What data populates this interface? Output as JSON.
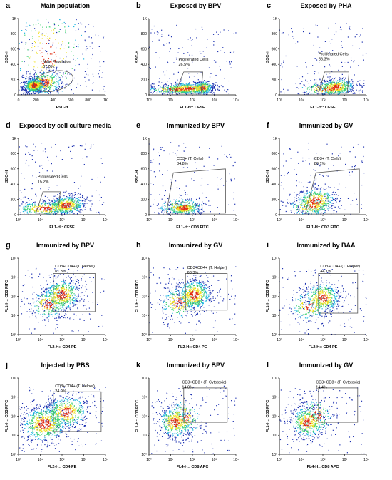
{
  "panels": [
    {
      "letter": "a",
      "title": "Main population",
      "xlabel": "FSC-H",
      "ylabel": "SSC-H",
      "xscale": "lin",
      "yscale": "lin",
      "xticks": [
        "0",
        "200",
        "400",
        "600",
        "800",
        "1K"
      ],
      "yticks": [
        "0",
        "200",
        "400",
        "600",
        "800",
        "1K"
      ],
      "gate_type": "ellipse",
      "gate_name": "Main Population",
      "gate_pct": "87.0%"
    },
    {
      "letter": "b",
      "title": "Exposed by BPV",
      "xlabel": "FL1-H:: CFSE",
      "ylabel": "SSC-H",
      "xscale": "log",
      "yscale": "lin",
      "xticks": [
        "10⁰",
        "10¹",
        "10²",
        "10³",
        "10⁴"
      ],
      "yticks": [
        "0",
        "200",
        "400",
        "600",
        "800",
        "1K"
      ],
      "gate_type": "poly",
      "gate_name": "Proliferated Cells",
      "gate_pct": "26.5%"
    },
    {
      "letter": "c",
      "title": "Exposed by PHA",
      "xlabel": "FL1-H:: CFSE",
      "ylabel": "SSC-H",
      "xscale": "log",
      "yscale": "lin",
      "xticks": [
        "10⁰",
        "10¹",
        "10²",
        "10³",
        "10⁴"
      ],
      "yticks": [
        "0",
        "200",
        "400",
        "600",
        "800",
        "1K"
      ],
      "gate_type": "poly",
      "gate_name": "Proliferated Cells",
      "gate_pct": "56.3%"
    },
    {
      "letter": "d",
      "title": "Exposed by cell culture media",
      "xlabel": "FL1-H:: CFSE",
      "ylabel": "SSC-H",
      "xscale": "log",
      "yscale": "lin",
      "xticks": [
        "10⁰",
        "10¹",
        "10²",
        "10³",
        "10⁴"
      ],
      "yticks": [
        "0",
        "200",
        "400",
        "600",
        "800",
        "1K"
      ],
      "gate_type": "poly",
      "gate_name": "Proliferated Cells",
      "gate_pct": "15.2%"
    },
    {
      "letter": "e",
      "title": "Immunized by BPV",
      "xlabel": "FL1-H:: CD3 FITC",
      "ylabel": "SSC-H",
      "xscale": "log",
      "yscale": "lin",
      "xticks": [
        "10⁰",
        "10¹",
        "10²",
        "10³",
        "10⁴"
      ],
      "yticks": [
        "0",
        "200",
        "400",
        "600",
        "800",
        "1K"
      ],
      "gate_type": "trap",
      "gate_name": "CD3+ (T. Cells)",
      "gate_pct": "84.8%"
    },
    {
      "letter": "f",
      "title": "Immunized by GV",
      "xlabel": "FL1-H:: CD3 FITC",
      "ylabel": "SSC-H",
      "xscale": "log",
      "yscale": "lin",
      "xticks": [
        "10⁰",
        "10¹",
        "10²",
        "10³",
        "10⁴"
      ],
      "yticks": [
        "0",
        "200",
        "400",
        "600",
        "800",
        "1K"
      ],
      "gate_type": "trap",
      "gate_name": "CD3+ (T. Cells)",
      "gate_pct": "86.1%"
    },
    {
      "letter": "g",
      "title": "Immunized by BPV",
      "xlabel": "FL2-H:: CD4 PE",
      "ylabel": "FL1-H:: CD3 FITC",
      "xscale": "log",
      "yscale": "log",
      "xticks": [
        "10⁰",
        "10¹",
        "10²",
        "10³",
        "10⁴"
      ],
      "yticks": [
        "10⁰",
        "10¹",
        "10²",
        "10³",
        "10⁴"
      ],
      "gate_type": "rect",
      "gate_name": "CD3+CD4+ (T. Helper)",
      "gate_pct": "61.3%"
    },
    {
      "letter": "h",
      "title": "Immunized by GV",
      "xlabel": "FL2-H:: CD4 PE",
      "ylabel": "FL1-H:: CD3 FITC",
      "xscale": "log",
      "yscale": "log",
      "xticks": [
        "10⁰",
        "10¹",
        "10²",
        "10³",
        "10⁴"
      ],
      "yticks": [
        "10⁰",
        "10¹",
        "10²",
        "10³",
        "10⁴"
      ],
      "gate_type": "rect",
      "gate_name": "CD3+CD4+ (T. Helper)",
      "gate_pct": "63.3%"
    },
    {
      "letter": "i",
      "title": "Immunized by BAA",
      "xlabel": "FL2-H:: CD4 PE",
      "ylabel": "FL1-H:: CD3 FITC",
      "xscale": "log",
      "yscale": "log",
      "xticks": [
        "10⁰",
        "10¹",
        "10²",
        "10³",
        "10⁴"
      ],
      "yticks": [
        "10⁰",
        "10¹",
        "10²",
        "10³",
        "10⁴"
      ],
      "gate_type": "rect",
      "gate_name": "CD3+CD4+ (T. Helper)",
      "gate_pct": "44.1%"
    },
    {
      "letter": "j",
      "title": "Injected by PBS",
      "xlabel": "FL2-H:: CD4 PE",
      "ylabel": "FL1-H:: CD3 FITC",
      "xscale": "log",
      "yscale": "log",
      "xticks": [
        "10⁰",
        "10¹",
        "10²",
        "10³",
        "10⁴"
      ],
      "yticks": [
        "10⁰",
        "10¹",
        "10²",
        "10³",
        "10⁴"
      ],
      "gate_type": "rect",
      "gate_name": "CD3+CD4+ (T. Helper)",
      "gate_pct": "24.9%"
    },
    {
      "letter": "k",
      "title": "Immunized by BPV",
      "xlabel": "FL4-H:: CD8 APC",
      "ylabel": "FL1-H:: CD3 FITC",
      "xscale": "log",
      "yscale": "log",
      "xticks": [
        "10⁰",
        "10¹",
        "10²",
        "10³",
        "10⁴"
      ],
      "yticks": [
        "10⁰",
        "10¹",
        "10²",
        "10³",
        "10⁴"
      ],
      "gate_type": "rect",
      "gate_name": "CD3+CD8+ (T. Cytotoxic)",
      "gate_pct": "14.0%"
    },
    {
      "letter": "l",
      "title": "Immunized by GV",
      "xlabel": "FL4-H:: CD8 APC",
      "ylabel": "FL1-H:: CD3 FITC",
      "xscale": "log",
      "yscale": "log",
      "xticks": [
        "10⁰",
        "10¹",
        "10²",
        "10³",
        "10⁴"
      ],
      "yticks": [
        "10⁰",
        "10¹",
        "10²",
        "10³",
        "10⁴"
      ],
      "gate_type": "rect",
      "gate_name": "CD3+CD8+ (T. Cytotoxic)",
      "gate_pct": "14.4%"
    }
  ],
  "colors": {
    "low": "#1a2fb0",
    "mid": "#18b4e0",
    "high": "#f0e020",
    "peak": "#e02a10",
    "axis": "#000000",
    "gate": "#555555"
  },
  "chart_data": [
    {
      "type": "scatter",
      "panel": "a",
      "title": "Main population",
      "xlabel": "FSC-H",
      "ylabel": "SSC-H",
      "xlim": [
        0,
        1000
      ],
      "ylim": [
        0,
        1000
      ],
      "gate": "Main Population",
      "gate_percent": 87.0
    },
    {
      "type": "scatter",
      "panel": "b",
      "title": "Exposed by BPV",
      "xlabel": "FL1-H:: CFSE",
      "ylabel": "SSC-H",
      "xscale": "log",
      "xlim": [
        1,
        10000
      ],
      "ylim": [
        0,
        1000
      ],
      "gate": "Proliferated Cells",
      "gate_percent": 26.5
    },
    {
      "type": "scatter",
      "panel": "c",
      "title": "Exposed by PHA",
      "xlabel": "FL1-H:: CFSE",
      "ylabel": "SSC-H",
      "xscale": "log",
      "xlim": [
        1,
        10000
      ],
      "ylim": [
        0,
        1000
      ],
      "gate": "Proliferated Cells",
      "gate_percent": 56.3
    },
    {
      "type": "scatter",
      "panel": "d",
      "title": "Exposed by cell culture media",
      "xlabel": "FL1-H:: CFSE",
      "ylabel": "SSC-H",
      "xscale": "log",
      "xlim": [
        1,
        10000
      ],
      "ylim": [
        0,
        1000
      ],
      "gate": "Proliferated Cells",
      "gate_percent": 15.2
    },
    {
      "type": "scatter",
      "panel": "e",
      "title": "Immunized by BPV",
      "xlabel": "FL1-H:: CD3 FITC",
      "ylabel": "SSC-H",
      "xscale": "log",
      "xlim": [
        1,
        10000
      ],
      "ylim": [
        0,
        1000
      ],
      "gate": "CD3+ (T. Cells)",
      "gate_percent": 84.8
    },
    {
      "type": "scatter",
      "panel": "f",
      "title": "Immunized by GV",
      "xlabel": "FL1-H:: CD3 FITC",
      "ylabel": "SSC-H",
      "xscale": "log",
      "xlim": [
        1,
        10000
      ],
      "ylim": [
        0,
        1000
      ],
      "gate": "CD3+ (T. Cells)",
      "gate_percent": 86.1
    },
    {
      "type": "scatter",
      "panel": "g",
      "title": "Immunized by BPV",
      "xlabel": "FL2-H:: CD4 PE",
      "ylabel": "FL1-H:: CD3 FITC",
      "xscale": "log",
      "yscale": "log",
      "xlim": [
        1,
        10000
      ],
      "ylim": [
        1,
        10000
      ],
      "gate": "CD3+CD4+ (T. Helper)",
      "gate_percent": 61.3
    },
    {
      "type": "scatter",
      "panel": "h",
      "title": "Immunized by GV",
      "xlabel": "FL2-H:: CD4 PE",
      "ylabel": "FL1-H:: CD3 FITC",
      "xscale": "log",
      "yscale": "log",
      "xlim": [
        1,
        10000
      ],
      "ylim": [
        1,
        10000
      ],
      "gate": "CD3+CD4+ (T. Helper)",
      "gate_percent": 63.3
    },
    {
      "type": "scatter",
      "panel": "i",
      "title": "Immunized by BAA",
      "xlabel": "FL2-H:: CD4 PE",
      "ylabel": "FL1-H:: CD3 FITC",
      "xscale": "log",
      "yscale": "log",
      "xlim": [
        1,
        10000
      ],
      "ylim": [
        1,
        10000
      ],
      "gate": "CD3+CD4+ (T. Helper)",
      "gate_percent": 44.1
    },
    {
      "type": "scatter",
      "panel": "j",
      "title": "Injected by PBS",
      "xlabel": "FL2-H:: CD4 PE",
      "ylabel": "FL1-H:: CD3 FITC",
      "xscale": "log",
      "yscale": "log",
      "xlim": [
        1,
        10000
      ],
      "ylim": [
        1,
        10000
      ],
      "gate": "CD3+CD4+ (T. Helper)",
      "gate_percent": 24.9
    },
    {
      "type": "scatter",
      "panel": "k",
      "title": "Immunized by BPV",
      "xlabel": "FL4-H:: CD8 APC",
      "ylabel": "FL1-H:: CD3 FITC",
      "xscale": "log",
      "yscale": "log",
      "xlim": [
        1,
        10000
      ],
      "ylim": [
        1,
        10000
      ],
      "gate": "CD3+CD8+ (T. Cytotoxic)",
      "gate_percent": 14.0
    },
    {
      "type": "scatter",
      "panel": "l",
      "title": "Immunized by GV",
      "xlabel": "FL4-H:: CD8 APC",
      "ylabel": "FL1-H:: CD3 FITC",
      "xscale": "log",
      "yscale": "log",
      "xlim": [
        1,
        10000
      ],
      "ylim": [
        1,
        10000
      ],
      "gate": "CD3+CD8+ (T. Cytotoxic)",
      "gate_percent": 14.4
    }
  ]
}
